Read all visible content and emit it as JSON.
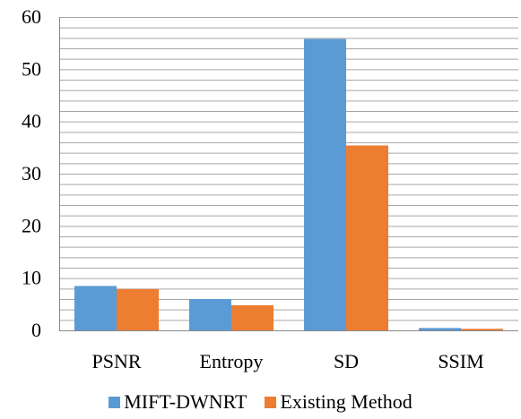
{
  "chart_data": {
    "type": "bar",
    "categories": [
      "PSNR",
      "Entropy",
      "SD",
      "SSIM"
    ],
    "series": [
      {
        "name": "MIFT-DWNRT",
        "values": [
          8.5,
          6.0,
          55.8,
          0.45
        ],
        "color": "#5b9bd5"
      },
      {
        "name": "Existing Method",
        "values": [
          7.9,
          4.8,
          35.4,
          0.3
        ],
        "color": "#ed7d31"
      }
    ],
    "ylim": [
      0,
      60
    ],
    "yticks": [
      0,
      10,
      20,
      30,
      40,
      50,
      60
    ],
    "grid": true,
    "minor_grid_step": 2,
    "legend_position": "bottom",
    "title": "",
    "xlabel": "",
    "ylabel": ""
  }
}
